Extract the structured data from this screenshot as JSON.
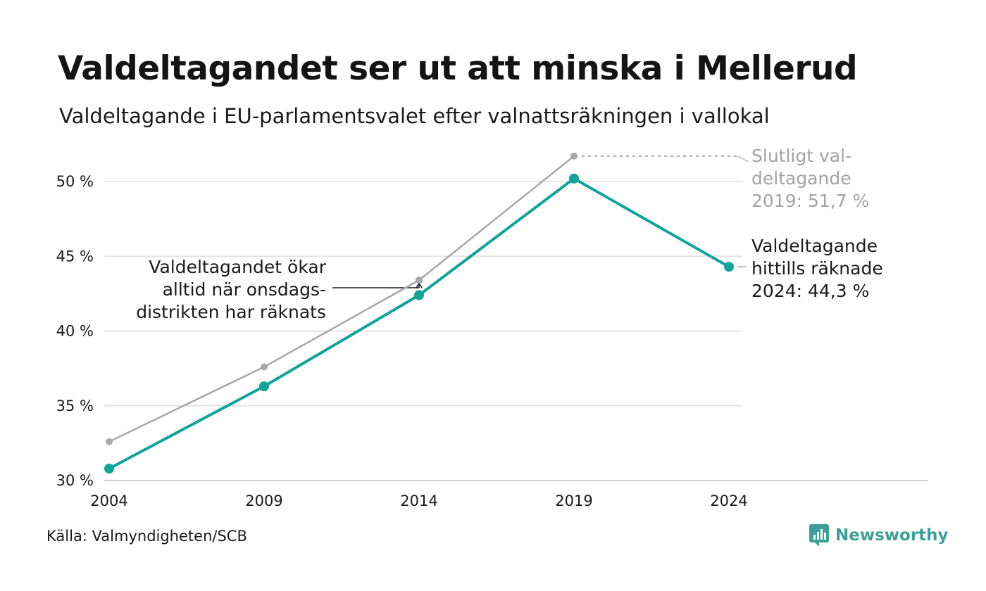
{
  "title": "Valdeltagandet ser ut att minska i Mellerud",
  "subtitle": "Valdeltagande i EU-parlamentsvalet efter valnattsräkningen i vallokal",
  "source": "Källa: Valmyndigheten/SCB",
  "brand": "Newsworthy",
  "colors": {
    "accent": "#12a297",
    "final": "#a8a8a8",
    "grid": "#e3e3e3",
    "axis": "#cfcfcf"
  },
  "chart_data": {
    "type": "line",
    "x": [
      2004,
      2009,
      2014,
      2019,
      2024
    ],
    "ylim": [
      30,
      52
    ],
    "yticks": [
      30,
      35,
      40,
      45,
      50
    ],
    "ytick_labels": [
      "30 %",
      "35 %",
      "40 %",
      "45 %",
      "50 %"
    ],
    "xtick_labels": [
      "2004",
      "2009",
      "2014",
      "2019",
      "2024"
    ],
    "grid": true,
    "series": [
      {
        "key": "final",
        "values": [
          32.6,
          37.6,
          43.4,
          51.7,
          null
        ]
      },
      {
        "key": "counted",
        "values": [
          30.8,
          36.3,
          42.4,
          50.2,
          44.3
        ]
      }
    ],
    "annotations": {
      "final_2019": [
        "Slutligt val-",
        "deltagande",
        "2019: 51,7 %"
      ],
      "counted_2024": [
        "Valdeltagande",
        "hittills räknade",
        "2024: 44,3 %"
      ],
      "wednesday_note": [
        "Valdeltagandet ökar",
        "alltid när onsdags-",
        "distrikten har räknats"
      ]
    }
  }
}
